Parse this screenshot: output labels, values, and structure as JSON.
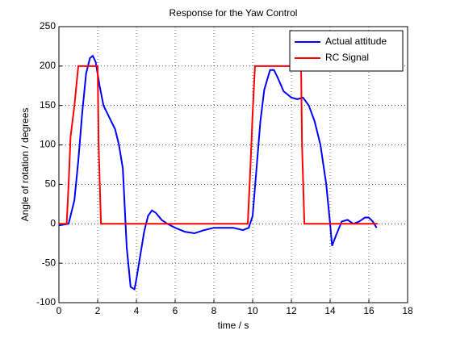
{
  "chart_data": {
    "type": "line",
    "title": "Response for the Yaw Control",
    "x_label": "time / s",
    "y_label": "Angle of rotation / degrees",
    "xlim": [
      0,
      18
    ],
    "xticks": [
      0,
      2,
      4,
      6,
      8,
      10,
      12,
      14,
      16,
      18
    ],
    "ylim": [
      -100,
      250
    ],
    "yticks": [
      -100,
      -50,
      0,
      50,
      100,
      150,
      200,
      250
    ],
    "grid": true,
    "legend": "top-right",
    "series": [
      {
        "name": "Actual attitude",
        "color": "#0000ff",
        "x": [
          0,
          0.5,
          0.8,
          1.0,
          1.2,
          1.4,
          1.6,
          1.75,
          1.9,
          2.1,
          2.3,
          2.6,
          2.9,
          3.1,
          3.3,
          3.4,
          3.5,
          3.7,
          3.9,
          4.0,
          4.2,
          4.4,
          4.6,
          4.8,
          5.0,
          5.3,
          5.6,
          6.0,
          6.5,
          7.0,
          7.5,
          8.0,
          8.5,
          9.0,
          9.5,
          9.8,
          10.0,
          10.2,
          10.4,
          10.6,
          10.9,
          11.1,
          11.3,
          11.6,
          12.0,
          12.3,
          12.6,
          12.9,
          13.2,
          13.5,
          13.8,
          14.0,
          14.1,
          14.3,
          14.6,
          14.9,
          15.2,
          15.5,
          15.8,
          16.0,
          16.2,
          16.4
        ],
        "values": [
          -2,
          0,
          30,
          80,
          140,
          190,
          210,
          213,
          205,
          175,
          150,
          135,
          120,
          100,
          70,
          20,
          -30,
          -80,
          -83,
          -70,
          -40,
          -10,
          10,
          17,
          14,
          5,
          0,
          -5,
          -10,
          -12,
          -8,
          -5,
          -5,
          -5,
          -8,
          -5,
          10,
          70,
          130,
          170,
          195,
          195,
          185,
          168,
          160,
          158,
          160,
          150,
          130,
          100,
          50,
          0,
          -28,
          -15,
          3,
          5,
          0,
          3,
          8,
          8,
          3,
          -5
        ]
      },
      {
        "name": "RC Signal",
        "color": "#ff0000",
        "x": [
          0,
          0.4,
          0.5,
          0.6,
          0.8,
          1.0,
          2.0,
          2.05,
          2.17,
          9.75,
          9.9,
          10.0,
          10.12,
          12.5,
          12.55,
          12.67,
          16.45
        ],
        "values": [
          0,
          0,
          50,
          110,
          150,
          200,
          200,
          100,
          0,
          0,
          80,
          140,
          200,
          200,
          100,
          0,
          0
        ]
      }
    ]
  }
}
